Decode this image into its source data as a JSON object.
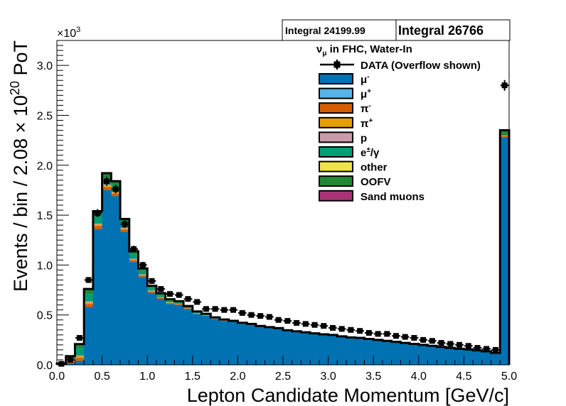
{
  "chart_data": {
    "type": "histogram",
    "title": "",
    "xlabel": "Lepton Candidate Momentum [GeV/c]",
    "ylabel_parts": [
      "Events / bin / 2.08 × 10",
      "20",
      " PoT"
    ],
    "y_multiplier_parts": [
      "×10",
      "3"
    ],
    "xlim": [
      0,
      5
    ],
    "ylim": [
      0,
      3.25
    ],
    "x_ticks": [
      "0.0",
      "0.5",
      "1.0",
      "1.5",
      "2.0",
      "2.5",
      "3.0",
      "3.5",
      "4.0",
      "4.5",
      "5.0"
    ],
    "y_ticks": [
      "0.0",
      "0.5",
      "1.0",
      "1.5",
      "2.0",
      "2.5",
      "3.0"
    ],
    "bin_edges": [
      0,
      0.1,
      0.2,
      0.3,
      0.4,
      0.5,
      0.6,
      0.7,
      0.8,
      0.9,
      1.0,
      1.1,
      1.2,
      1.3,
      1.4,
      1.5,
      1.6,
      1.7,
      1.8,
      1.9,
      2.0,
      2.1,
      2.2,
      2.3,
      2.4,
      2.5,
      2.6,
      2.7,
      2.8,
      2.9,
      3.0,
      3.1,
      3.2,
      3.3,
      3.4,
      3.5,
      3.6,
      3.7,
      3.8,
      3.9,
      4.0,
      4.1,
      4.2,
      4.3,
      4.4,
      4.5,
      4.6,
      4.7,
      4.8,
      4.9,
      5.0
    ],
    "stack": [
      {
        "name_parts": [
          "μ",
          "-"
        ],
        "color": "#0072b2",
        "values": [
          0.005,
          0.015,
          0.04,
          0.58,
          1.36,
          1.75,
          1.69,
          1.33,
          1.03,
          0.88,
          0.72,
          0.66,
          0.61,
          0.6,
          0.56,
          0.51,
          0.49,
          0.46,
          0.44,
          0.43,
          0.41,
          0.4,
          0.38,
          0.37,
          0.36,
          0.34,
          0.33,
          0.32,
          0.31,
          0.3,
          0.295,
          0.28,
          0.27,
          0.265,
          0.255,
          0.245,
          0.235,
          0.225,
          0.215,
          0.205,
          0.195,
          0.185,
          0.175,
          0.165,
          0.155,
          0.15,
          0.14,
          0.13,
          0.115,
          2.28
        ]
      },
      {
        "name_parts": [
          "μ",
          "+"
        ],
        "color": "#56b4e9",
        "values": [
          0,
          0,
          0,
          0,
          0,
          0,
          0,
          0,
          0,
          0,
          0,
          0,
          0,
          0,
          0,
          0,
          0,
          0,
          0,
          0,
          0,
          0,
          0,
          0,
          0,
          0,
          0,
          0,
          0,
          0,
          0,
          0,
          0,
          0,
          0,
          0,
          0,
          0,
          0,
          0,
          0,
          0,
          0,
          0,
          0,
          0,
          0,
          0,
          0,
          0
        ]
      },
      {
        "name_parts": [
          "π",
          "-"
        ],
        "color": "#d55e00",
        "values": [
          0.002,
          0.015,
          0.03,
          0.03,
          0.03,
          0.03,
          0.025,
          0.025,
          0.02,
          0.015,
          0.015,
          0.012,
          0.01,
          0.008,
          0.006,
          0.005,
          0.004,
          0.003,
          0.003,
          0.002,
          0.002,
          0.002,
          0.002,
          0.001,
          0.001,
          0.001,
          0.001,
          0.001,
          0.001,
          0.001,
          0.001,
          0.001,
          0.001,
          0.001,
          0.001,
          0.001,
          0.001,
          0.001,
          0.001,
          0.001,
          0.001,
          0.001,
          0.001,
          0.001,
          0.001,
          0.001,
          0.001,
          0.001,
          0.001,
          0.01
        ]
      },
      {
        "name_parts": [
          "π",
          "+"
        ],
        "color": "#e69f00",
        "values": [
          0.001,
          0.008,
          0.015,
          0.015,
          0.015,
          0.015,
          0.012,
          0.01,
          0.008,
          0.007,
          0.006,
          0.005,
          0.004,
          0.003,
          0.002,
          0.002,
          0.002,
          0.001,
          0.001,
          0.001,
          0.001,
          0.001,
          0.001,
          0.001,
          0.001,
          0.001,
          0.001,
          0.001,
          0.001,
          0.001,
          0,
          0,
          0,
          0,
          0,
          0,
          0,
          0,
          0,
          0,
          0,
          0,
          0,
          0,
          0,
          0,
          0,
          0,
          0,
          0.005
        ]
      },
      {
        "name_parts": [
          "p",
          ""
        ],
        "color": "#cc99aa",
        "values": [
          0.001,
          0.004,
          0.008,
          0.01,
          0.01,
          0.01,
          0.008,
          0.006,
          0.005,
          0.004,
          0.003,
          0.002,
          0.002,
          0.001,
          0.001,
          0.001,
          0.001,
          0,
          0,
          0,
          0,
          0,
          0,
          0,
          0,
          0,
          0,
          0,
          0,
          0,
          0,
          0,
          0,
          0,
          0,
          0,
          0,
          0,
          0,
          0,
          0,
          0,
          0,
          0,
          0,
          0,
          0,
          0,
          0,
          0
        ]
      },
      {
        "name_parts": [
          "e",
          "±",
          "/γ"
        ],
        "color": "#009e73",
        "values": [
          0.002,
          0.025,
          0.075,
          0.075,
          0.075,
          0.07,
          0.065,
          0.055,
          0.045,
          0.035,
          0.028,
          0.022,
          0.017,
          0.013,
          0.01,
          0.008,
          0.006,
          0.005,
          0.004,
          0.003,
          0.003,
          0.002,
          0.002,
          0.002,
          0.002,
          0.001,
          0.001,
          0.001,
          0.001,
          0.001,
          0.001,
          0.001,
          0.001,
          0.001,
          0.001,
          0.001,
          0.001,
          0.001,
          0.001,
          0.001,
          0.001,
          0.001,
          0.001,
          0.001,
          0.001,
          0.001,
          0.001,
          0.001,
          0.001,
          0.005
        ]
      },
      {
        "name_parts": [
          "other",
          ""
        ],
        "color": "#f0e442",
        "values": [
          0,
          0,
          0,
          0,
          0,
          0,
          0,
          0,
          0,
          0,
          0,
          0,
          0,
          0,
          0,
          0,
          0,
          0,
          0,
          0,
          0,
          0,
          0,
          0,
          0,
          0,
          0,
          0,
          0,
          0,
          0,
          0,
          0,
          0,
          0,
          0,
          0,
          0,
          0,
          0,
          0,
          0,
          0,
          0,
          0,
          0,
          0,
          0,
          0,
          0
        ]
      },
      {
        "name_parts": [
          "OOFV",
          ""
        ],
        "color": "#228833",
        "values": [
          0.003,
          0.02,
          0.04,
          0.05,
          0.05,
          0.045,
          0.04,
          0.035,
          0.03,
          0.025,
          0.02,
          0.017,
          0.014,
          0.012,
          0.01,
          0.009,
          0.008,
          0.007,
          0.006,
          0.005,
          0.005,
          0.005,
          0.004,
          0.004,
          0.004,
          0.004,
          0.003,
          0.003,
          0.003,
          0.003,
          0.003,
          0.003,
          0.003,
          0.003,
          0.003,
          0.003,
          0.003,
          0.003,
          0.003,
          0.003,
          0.003,
          0.003,
          0.003,
          0.003,
          0.003,
          0.003,
          0.003,
          0.003,
          0.003,
          0.05
        ]
      },
      {
        "name_parts": [
          "Sand muons",
          ""
        ],
        "color": "#aa3377",
        "values": [
          0,
          0,
          0,
          0,
          0,
          0,
          0,
          0,
          0,
          0,
          0,
          0,
          0,
          0,
          0,
          0,
          0,
          0,
          0,
          0,
          0,
          0,
          0,
          0,
          0,
          0,
          0,
          0,
          0,
          0,
          0,
          0,
          0,
          0,
          0,
          0,
          0,
          0,
          0,
          0,
          0,
          0,
          0,
          0,
          0,
          0,
          0,
          0,
          0,
          0
        ]
      }
    ],
    "data_label": "DATA (Overflow shown)",
    "data_x": [
      0.05,
      0.15,
      0.25,
      0.35,
      0.45,
      0.55,
      0.65,
      0.75,
      0.85,
      0.95,
      1.05,
      1.15,
      1.25,
      1.35,
      1.45,
      1.55,
      1.65,
      1.75,
      1.85,
      1.95,
      2.05,
      2.15,
      2.25,
      2.35,
      2.45,
      2.55,
      2.65,
      2.75,
      2.85,
      2.95,
      3.05,
      3.15,
      3.25,
      3.35,
      3.45,
      3.55,
      3.65,
      3.75,
      3.85,
      3.95,
      4.05,
      4.15,
      4.25,
      4.35,
      4.45,
      4.55,
      4.65,
      4.75,
      4.85,
      4.95
    ],
    "data_y": [
      0.01,
      0.05,
      0.27,
      0.85,
      1.52,
      1.84,
      1.76,
      1.41,
      1.16,
      1.0,
      0.84,
      0.76,
      0.71,
      0.7,
      0.66,
      0.63,
      0.56,
      0.56,
      0.55,
      0.55,
      0.52,
      0.5,
      0.49,
      0.48,
      0.45,
      0.44,
      0.42,
      0.41,
      0.4,
      0.39,
      0.37,
      0.36,
      0.35,
      0.34,
      0.32,
      0.31,
      0.31,
      0.29,
      0.28,
      0.27,
      0.25,
      0.24,
      0.22,
      0.21,
      0.2,
      0.19,
      0.17,
      0.16,
      0.15,
      2.8
    ],
    "data_yerr": [
      0.003,
      0.01,
      0.02,
      0.03,
      0.04,
      0.045,
      0.042,
      0.038,
      0.034,
      0.032,
      0.029,
      0.028,
      0.027,
      0.026,
      0.026,
      0.025,
      0.024,
      0.024,
      0.023,
      0.023,
      0.023,
      0.022,
      0.022,
      0.022,
      0.021,
      0.021,
      0.02,
      0.02,
      0.02,
      0.02,
      0.019,
      0.019,
      0.019,
      0.018,
      0.018,
      0.018,
      0.018,
      0.017,
      0.017,
      0.016,
      0.016,
      0.015,
      0.015,
      0.015,
      0.014,
      0.014,
      0.013,
      0.013,
      0.012,
      0.053
    ],
    "legend_header_parts": [
      "ν",
      "μ",
      " in FHC, Water-In"
    ],
    "legend_placement": "top-right",
    "stat_boxes": [
      "Integral 24199.99",
      "Integral 26766"
    ],
    "grid": false
  }
}
